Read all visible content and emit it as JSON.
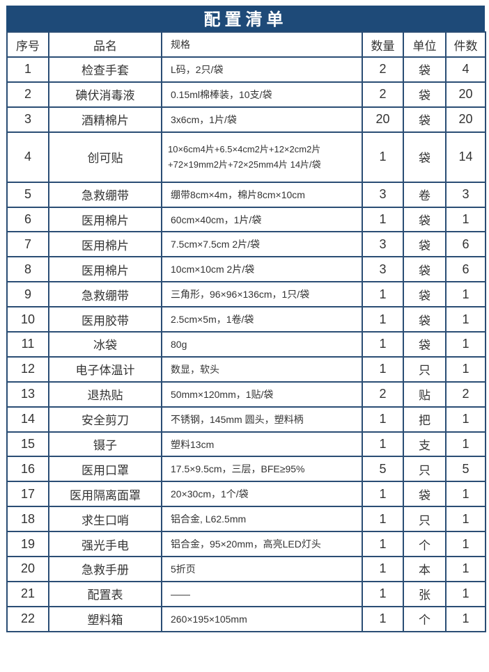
{
  "title": "配置清单",
  "headers": {
    "no": "序号",
    "name": "品名",
    "spec": "规格",
    "qty": "数量",
    "unit": "单位",
    "count": "件数"
  },
  "rows": [
    {
      "no": "1",
      "name": "检查手套",
      "spec": "L码，2只/袋",
      "qty": "2",
      "unit": "袋",
      "count": "4"
    },
    {
      "no": "2",
      "name": "碘伏消毒液",
      "spec": "0.15ml棉棒装，10支/袋",
      "qty": "2",
      "unit": "袋",
      "count": "20"
    },
    {
      "no": "3",
      "name": "酒精棉片",
      "spec": "3x6cm，1片/袋",
      "qty": "20",
      "unit": "袋",
      "count": "20"
    },
    {
      "no": "4",
      "name": "创可贴",
      "spec": "10×6cm4片+6.5×4cm2片+12×2cm2片",
      "spec2": "+72×19mm2片+72×25mm4片 14片/袋",
      "qty": "1",
      "unit": "袋",
      "count": "14"
    },
    {
      "no": "5",
      "name": "急救绷带",
      "spec": "绷带8cm×4m，棉片8cm×10cm",
      "qty": "3",
      "unit": "卷",
      "count": "3"
    },
    {
      "no": "6",
      "name": "医用棉片",
      "spec": "60cm×40cm，1片/袋",
      "qty": "1",
      "unit": "袋",
      "count": "1"
    },
    {
      "no": "7",
      "name": "医用棉片",
      "spec": "7.5cm×7.5cm 2片/袋",
      "qty": "3",
      "unit": "袋",
      "count": "6"
    },
    {
      "no": "8",
      "name": "医用棉片",
      "spec": "10cm×10cm 2片/袋",
      "qty": "3",
      "unit": "袋",
      "count": "6"
    },
    {
      "no": "9",
      "name": "急救绷带",
      "spec": "三角形，96×96×136cm，1只/袋",
      "qty": "1",
      "unit": "袋",
      "count": "1"
    },
    {
      "no": "10",
      "name": "医用胶带",
      "spec": "2.5cm×5m，1卷/袋",
      "qty": "1",
      "unit": "袋",
      "count": "1"
    },
    {
      "no": "11",
      "name": "冰袋",
      "spec": "80g",
      "qty": "1",
      "unit": "袋",
      "count": "1"
    },
    {
      "no": "12",
      "name": "电子体温计",
      "spec": "数显，软头",
      "qty": "1",
      "unit": "只",
      "count": "1"
    },
    {
      "no": "13",
      "name": "退热贴",
      "spec": "50mm×120mm，1贴/袋",
      "qty": "2",
      "unit": "贴",
      "count": "2"
    },
    {
      "no": "14",
      "name": "安全剪刀",
      "spec": "不锈钢，145mm 圆头，塑料柄",
      "qty": "1",
      "unit": "把",
      "count": "1"
    },
    {
      "no": "15",
      "name": "镊子",
      "spec": "塑料13cm",
      "qty": "1",
      "unit": "支",
      "count": "1"
    },
    {
      "no": "16",
      "name": "医用口罩",
      "spec": "17.5×9.5cm，三层，BFE≥95%",
      "qty": "5",
      "unit": "只",
      "count": "5"
    },
    {
      "no": "17",
      "name": "医用隔离面罩",
      "spec": "20×30cm，1个/袋",
      "qty": "1",
      "unit": "袋",
      "count": "1"
    },
    {
      "no": "18",
      "name": "求生口哨",
      "spec": "铝合金, L62.5mm",
      "qty": "1",
      "unit": "只",
      "count": "1"
    },
    {
      "no": "19",
      "name": "强光手电",
      "spec": "铝合金，95×20mm，高亮LED灯头",
      "qty": "1",
      "unit": "个",
      "count": "1"
    },
    {
      "no": "20",
      "name": "急救手册",
      "spec": "5折页",
      "qty": "1",
      "unit": "本",
      "count": "1"
    },
    {
      "no": "21",
      "name": "配置表",
      "spec": "——",
      "qty": "1",
      "unit": "张",
      "count": "1"
    },
    {
      "no": "22",
      "name": "塑料箱",
      "spec": "260×195×105mm",
      "qty": "1",
      "unit": "个",
      "count": "1"
    }
  ],
  "colors": {
    "title_bg": "#1e4a78",
    "border": "#2a4d74"
  }
}
